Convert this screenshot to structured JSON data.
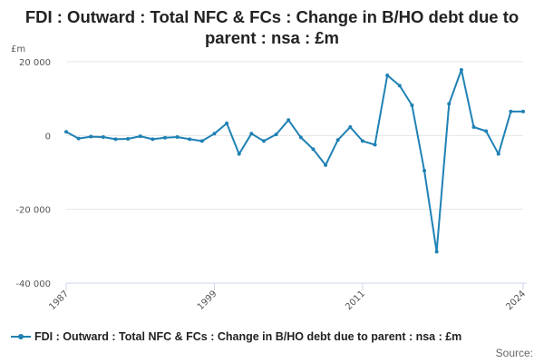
{
  "colors": {
    "series": "#1f81b4",
    "grid": "#e6e6e6",
    "axis": "#ccd6eb"
  },
  "legend": {
    "label": "FDI : Outward : Total NFC & FCs : Change in B/HO debt due to parent : nsa : £m"
  },
  "source": {
    "label": "Source:"
  },
  "chart_data": {
    "type": "line",
    "title": "FDI : Outward : Total NFC & FCs : Change in B/HO debt due to parent : nsa : £m",
    "ylabel": "£m",
    "xlabel": "",
    "ylim": [
      -40000,
      20000
    ],
    "yticks": [
      20000,
      0,
      -20000,
      -40000
    ],
    "ytick_labels": [
      "20 000",
      "0",
      "-20 000",
      "-40 000"
    ],
    "xticks": [
      1987,
      1999,
      2011,
      2024
    ],
    "grid": true,
    "legend_position": "bottom",
    "x": [
      1987,
      1988,
      1989,
      1990,
      1991,
      1992,
      1993,
      1994,
      1995,
      1996,
      1997,
      1998,
      1999,
      2000,
      2001,
      2002,
      2003,
      2004,
      2005,
      2006,
      2007,
      2008,
      2009,
      2010,
      2011,
      2012,
      2013,
      2014,
      2015,
      2016,
      2017,
      2018,
      2019,
      2020,
      2021,
      2022,
      2023,
      2024
    ],
    "series": [
      {
        "name": "FDI : Outward : Total NFC & FCs : Change in B/HO debt due to parent : nsa : £m",
        "values": [
          1000,
          -800,
          -300,
          -400,
          -1000,
          -900,
          -200,
          -1000,
          -600,
          -400,
          -1000,
          -1500,
          500,
          3300,
          -5000,
          500,
          -1500,
          300,
          4200,
          -500,
          -3700,
          -8000,
          -1200,
          2300,
          -1500,
          -2500,
          16300,
          13500,
          8200,
          -9500,
          -31500,
          8600,
          17800,
          2300,
          1200,
          -5000,
          6500,
          6500
        ]
      }
    ]
  }
}
